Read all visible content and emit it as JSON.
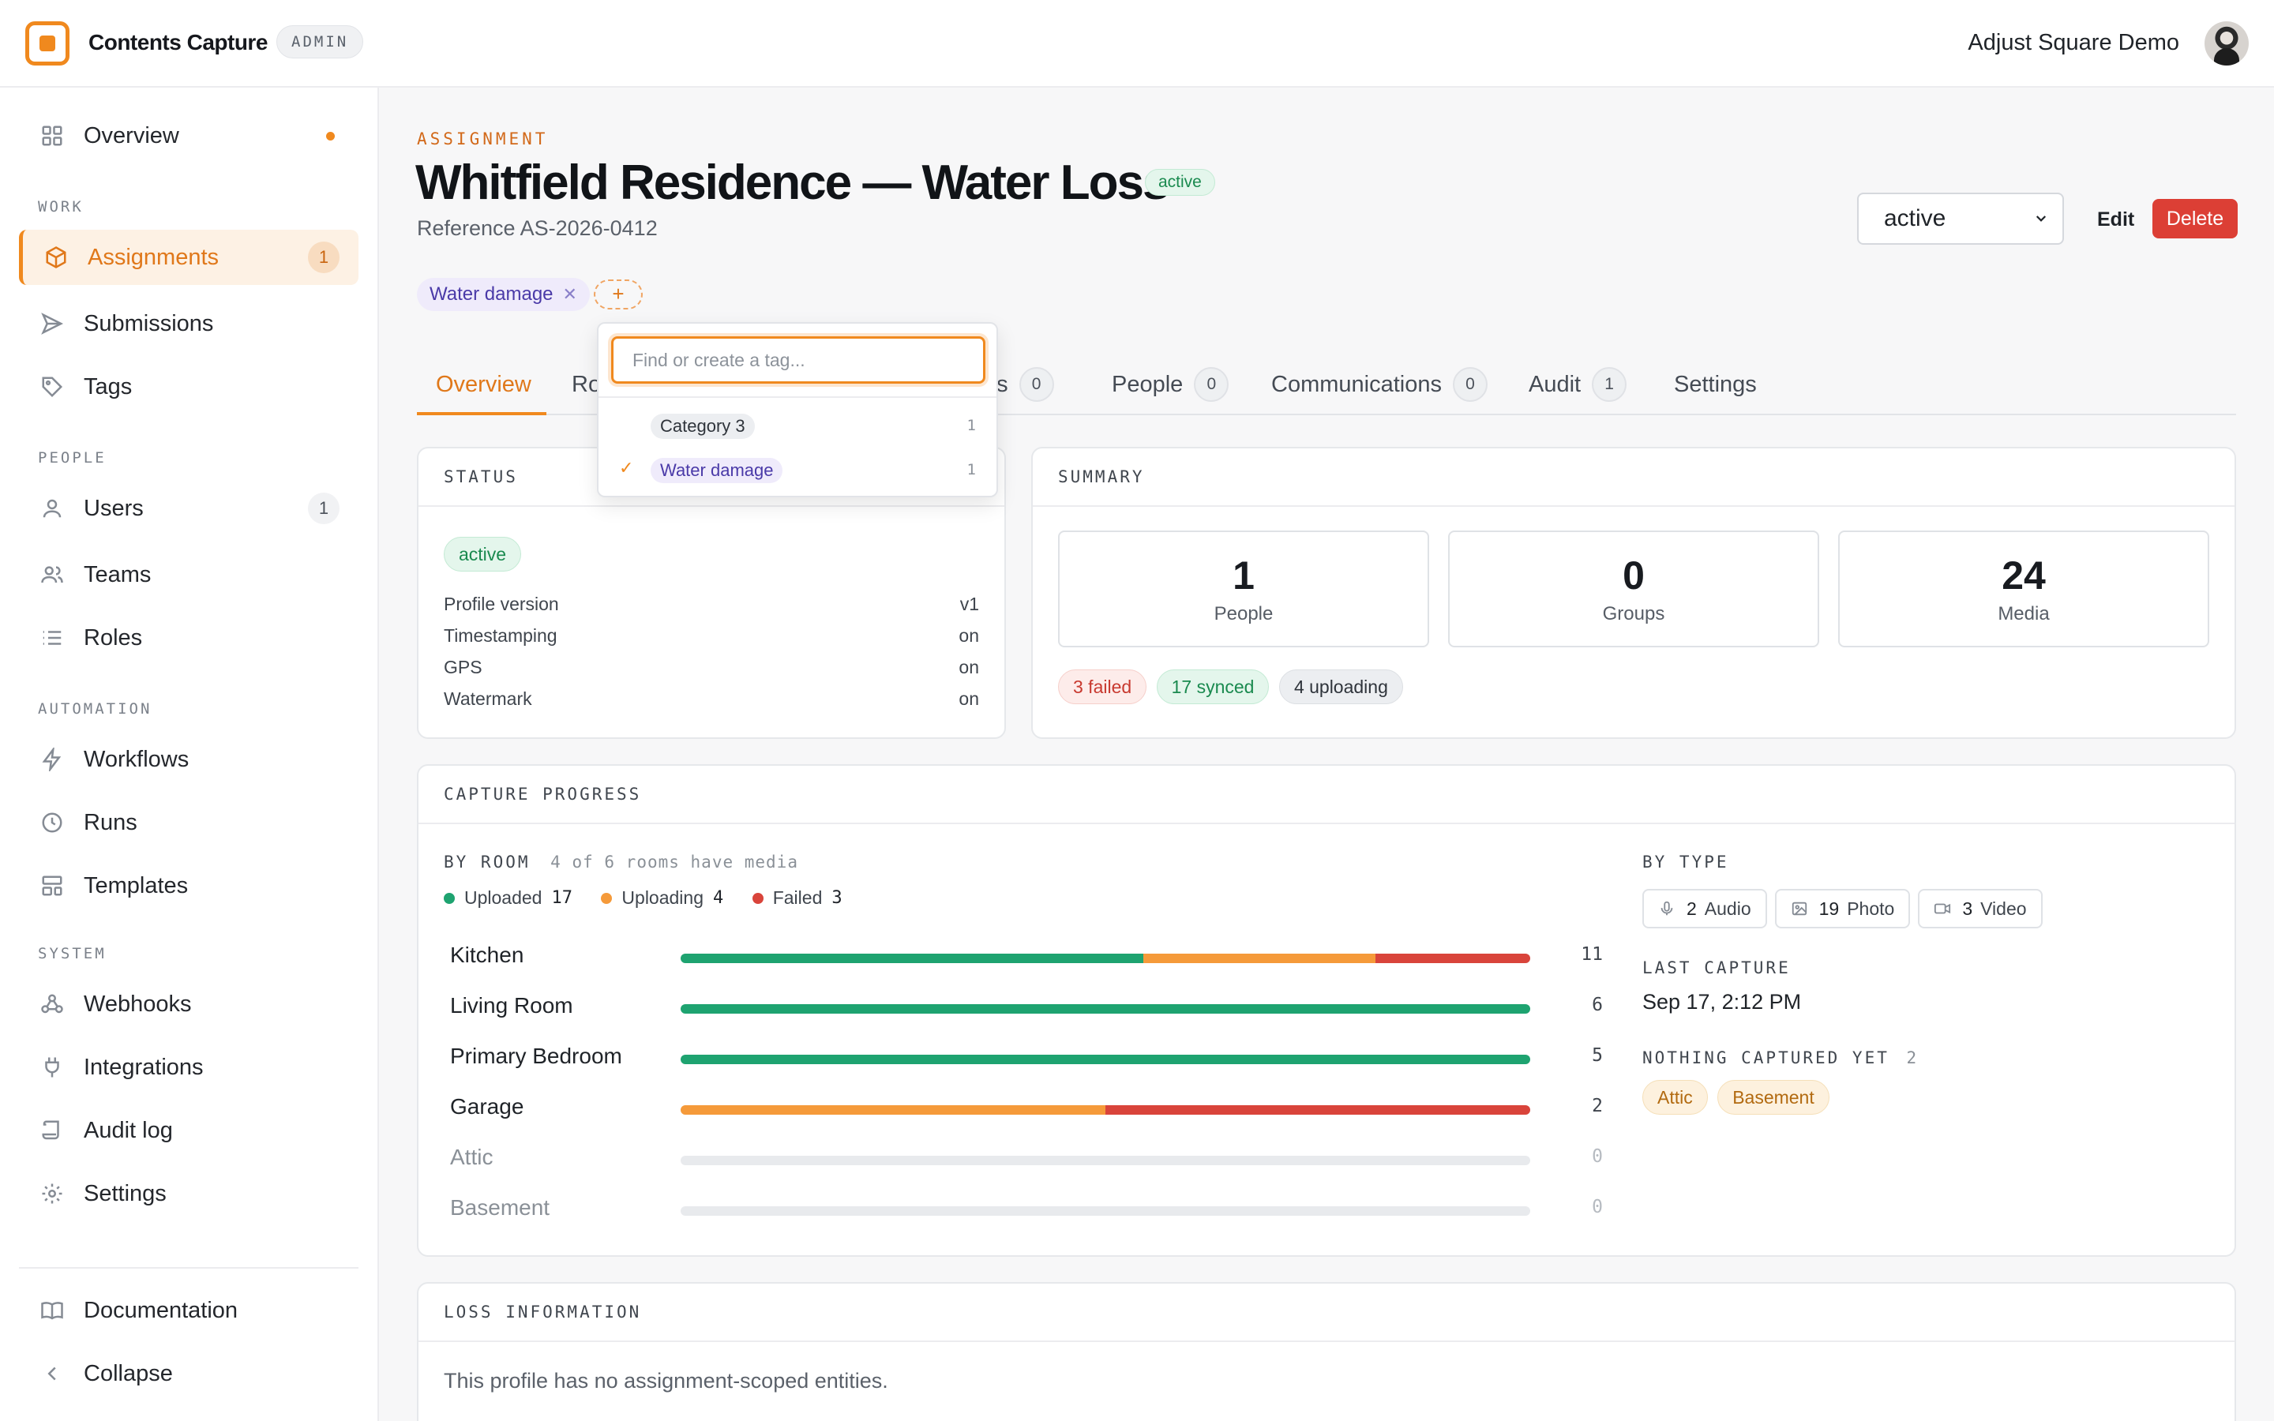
{
  "app": {
    "title": "Contents Capture",
    "role_badge": "ADMIN",
    "org": "Adjust Square Demo"
  },
  "colors": {
    "accent": "#f0891e",
    "uploaded": "#1ea370",
    "uploading": "#f59a3a",
    "failed": "#d9443b",
    "danger": "#dc3f35"
  },
  "sidebar": {
    "overview": "Overview",
    "sections": {
      "work": "WORK",
      "people": "PEOPLE",
      "automation": "AUTOMATION",
      "system": "SYSTEM"
    },
    "items": {
      "assignments": {
        "label": "Assignments",
        "count": "1"
      },
      "submissions": {
        "label": "Submissions"
      },
      "tags": {
        "label": "Tags"
      },
      "users": {
        "label": "Users",
        "count": "1"
      },
      "teams": {
        "label": "Teams"
      },
      "roles": {
        "label": "Roles"
      },
      "workflows": {
        "label": "Workflows"
      },
      "runs": {
        "label": "Runs"
      },
      "templates": {
        "label": "Templates"
      },
      "webhooks": {
        "label": "Webhooks"
      },
      "integrations": {
        "label": "Integrations"
      },
      "audit_log": {
        "label": "Audit log"
      },
      "settings": {
        "label": "Settings"
      },
      "documentation": {
        "label": "Documentation"
      },
      "collapse": {
        "label": "Collapse"
      }
    }
  },
  "header": {
    "eyebrow": "ASSIGNMENT",
    "title": "Whitfield Residence — Water Loss",
    "status_badge": "active",
    "reference": "Reference AS-2026-0412",
    "status_select": "active",
    "edit": "Edit",
    "delete": "Delete"
  },
  "tags": {
    "applied": "Water damage",
    "add": "+",
    "dropdown": {
      "placeholder": "Find or create a tag...",
      "options": [
        {
          "label": "Category 3",
          "count": "1",
          "checked": false
        },
        {
          "label": "Water damage",
          "count": "1",
          "checked": true
        }
      ]
    }
  },
  "tabs": [
    {
      "label": "Overview"
    },
    {
      "label": "Ro"
    },
    {
      "label": "ns",
      "count": "0"
    },
    {
      "label": "People",
      "count": "0"
    },
    {
      "label": "Communications",
      "count": "0"
    },
    {
      "label": "Audit",
      "count": "1"
    },
    {
      "label": "Settings"
    }
  ],
  "status_card": {
    "heading": "STATUS",
    "badge": "active",
    "rows": [
      {
        "key": "Profile version",
        "value": "v1"
      },
      {
        "key": "Timestamping",
        "value": "on"
      },
      {
        "key": "GPS",
        "value": "on"
      },
      {
        "key": "Watermark",
        "value": "on"
      }
    ]
  },
  "summary_card": {
    "heading": "SUMMARY",
    "stats": [
      {
        "value": "1",
        "label": "People"
      },
      {
        "value": "0",
        "label": "Groups"
      },
      {
        "value": "24",
        "label": "Media"
      }
    ],
    "pills": {
      "failed": "3 failed",
      "synced": "17 synced",
      "uploading": "4 uploading"
    }
  },
  "capture_progress": {
    "heading": "CAPTURE PROGRESS",
    "by_room_label": "BY ROOM",
    "by_room_note": "4 of 6 rooms have media",
    "legend": [
      {
        "label": "Uploaded",
        "value": "17",
        "color": "#1ea370"
      },
      {
        "label": "Uploading",
        "value": "4",
        "color": "#f59a3a"
      },
      {
        "label": "Failed",
        "value": "3",
        "color": "#d9443b"
      }
    ],
    "rooms": [
      {
        "name": "Kitchen",
        "total": "11",
        "uploaded_frac": 0.545,
        "uploading_frac": 0.273,
        "failed_frac": 0.182
      },
      {
        "name": "Living Room",
        "total": "6",
        "uploaded_frac": 1.0,
        "uploading_frac": 0,
        "failed_frac": 0
      },
      {
        "name": "Primary Bedroom",
        "total": "5",
        "uploaded_frac": 1.0,
        "uploading_frac": 0,
        "failed_frac": 0
      },
      {
        "name": "Garage",
        "total": "2",
        "uploaded_frac": 0,
        "uploading_frac": 0.5,
        "failed_frac": 0.5
      },
      {
        "name": "Attic",
        "total": "0",
        "uploaded_frac": 0,
        "uploading_frac": 0,
        "failed_frac": 0
      },
      {
        "name": "Basement",
        "total": "0",
        "uploaded_frac": 0,
        "uploading_frac": 0,
        "failed_frac": 0
      }
    ],
    "by_type_label": "BY TYPE",
    "types": [
      {
        "icon": "microphone-icon",
        "count": "2",
        "label": "Audio"
      },
      {
        "icon": "image-icon",
        "count": "19",
        "label": "Photo"
      },
      {
        "icon": "video-icon",
        "count": "3",
        "label": "Video"
      }
    ],
    "last_capture_label": "LAST CAPTURE",
    "last_capture": "Sep 17, 2:12 PM",
    "nothing_captured_label": "NOTHING CAPTURED YET",
    "nothing_captured_count": "2",
    "nothing_captured": [
      "Attic",
      "Basement"
    ]
  },
  "loss_card": {
    "heading": "LOSS INFORMATION",
    "body": "This profile has no assignment-scoped entities."
  }
}
